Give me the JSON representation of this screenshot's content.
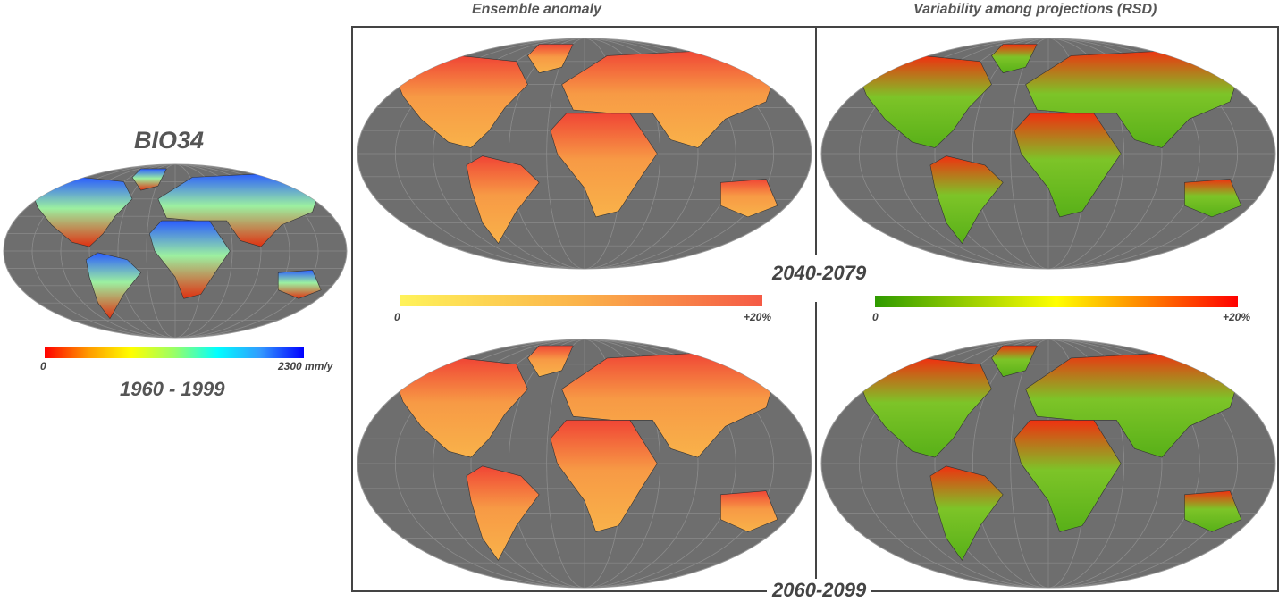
{
  "left_panel": {
    "title": "BIO34",
    "period": "1960 - 1999",
    "colorbar": {
      "min_label": "0",
      "max_label": "2300 mm/y",
      "colors": [
        "#ff0000",
        "#ff9900",
        "#ffff00",
        "#99ff66",
        "#00ffff",
        "#3399ff",
        "#0000ff"
      ]
    }
  },
  "column_headers": {
    "anomaly": "Ensemble anomaly",
    "variability": "Variability among projections (RSD)"
  },
  "periods": {
    "first": "2040-2079",
    "second": "2060-2099"
  },
  "anomaly_colorbar": {
    "min_label": "0",
    "max_label": "+20%",
    "colors": [
      "#fff35a",
      "#fbb24a",
      "#f55a45"
    ]
  },
  "rsd_colorbar": {
    "min_label": "0",
    "max_label": "+20%",
    "colors": [
      "#2e9a00",
      "#ffff00",
      "#ff0000"
    ]
  },
  "map_colors": {
    "ocean": "#6e6e6e",
    "bio34": {
      "north": "#2a5cff",
      "mid": "#9cf0a0",
      "south": "#f0a020",
      "desert": "#e03010"
    },
    "anomaly": {
      "north": "#f04535",
      "mid": "#f79a45",
      "south": "#f9b24a"
    },
    "rsd": {
      "north": "#f03010",
      "mid": "#7dc428",
      "south": "#58b018"
    }
  }
}
